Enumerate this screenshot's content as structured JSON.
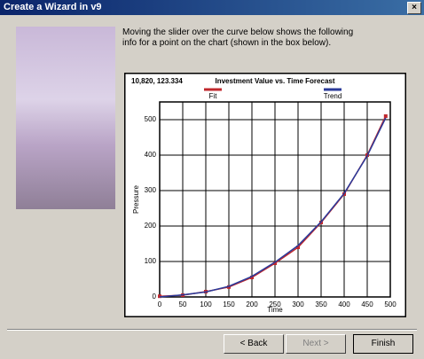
{
  "window": {
    "title": "Create a Wizard in v9",
    "close": "×"
  },
  "description": "Moving the slider over the curve below shows the following info for a point on the chart (shown in the box below).",
  "chart_data": {
    "type": "line",
    "header": "10,820, 123.334",
    "title": "Investment Value vs. Time Forecast",
    "x_label": "Time",
    "y_label": "Pressure",
    "x": [
      0,
      50,
      100,
      150,
      200,
      250,
      300,
      350,
      400,
      450,
      490
    ],
    "series": [
      {
        "name": "Fit",
        "color": "#c0282d",
        "values": [
          2,
          5,
          15,
          28,
          55,
          95,
          140,
          210,
          290,
          400,
          510
        ]
      },
      {
        "name": "Trend",
        "color": "#2a3a9a",
        "values": [
          0,
          6,
          14,
          30,
          58,
          98,
          145,
          212,
          292,
          398,
          505
        ]
      }
    ],
    "xlim": [
      0,
      500
    ],
    "xticks": [
      0,
      50,
      100,
      150,
      200,
      250,
      300,
      350,
      400,
      450,
      500
    ],
    "ylim": [
      0,
      550
    ],
    "yticks": [
      0,
      100,
      200,
      300,
      400,
      500
    ],
    "grid": true
  },
  "buttons": {
    "back": "< Back",
    "next": "Next >",
    "finish": "Finish"
  }
}
